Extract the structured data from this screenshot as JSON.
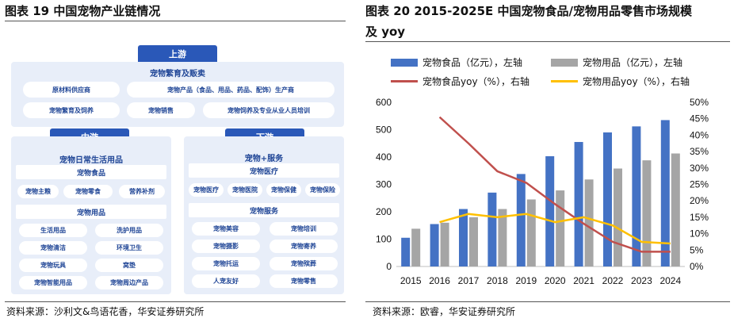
{
  "left": {
    "title": "图表 19 中国宠物产业链情况",
    "source": "资料来源：沙利文&鸟语花香，华安证券研究所",
    "upstream": {
      "tab": "上游",
      "header": "宠物繁育及贩卖",
      "boxes": [
        "原材料供应商",
        "宠物产品（食品、用品、药品、配饰）生产商",
        "宠物繁育及饲养",
        "宠物销售",
        "宠物饲养及专业从业人员培训"
      ]
    },
    "midstream": {
      "tab": "中游",
      "header": "宠物日常生活用品",
      "food": {
        "title": "宠物食品",
        "items": [
          "宠物主粮",
          "宠物零食",
          "营养补剂"
        ]
      },
      "supplies": {
        "title": "宠物用品",
        "items": [
          "生活用品",
          "洗护用品",
          "宠物清洁",
          "环境卫生",
          "宠物玩具",
          "窝垫",
          "宠物智能用品",
          "宠物周边产品"
        ]
      }
    },
    "downstream": {
      "tab": "下游",
      "header": "宠物+服务",
      "medical": {
        "title": "宠物医疗",
        "items": [
          "宠物医疗",
          "宠物医院",
          "宠物保健",
          "宠物保险"
        ]
      },
      "services": {
        "title": "宠物服务",
        "items": [
          "宠物美容",
          "宠物培训",
          "宠物摄影",
          "宠物寄养",
          "宠物托运",
          "宠物殡葬",
          "人宠友好",
          "宠物零售"
        ]
      }
    }
  },
  "right": {
    "title_line1": "图表 20 2015-2025E 中国宠物食品/宠物用品零售市场规模",
    "title_line2": "及 yoy",
    "source": "资料来源：欧睿，华安证券研究所"
  },
  "chart_data": {
    "type": "bar",
    "categories": [
      "2015",
      "2016",
      "2017",
      "2018",
      "2019",
      "2020",
      "2021",
      "2022",
      "2023",
      "2024"
    ],
    "series": [
      {
        "name": "宠物食品（亿元），左轴",
        "kind": "bar",
        "axis": "left",
        "color": "#4472c4",
        "values": [
          105,
          155,
          210,
          270,
          338,
          403,
          455,
          490,
          512,
          535
        ]
      },
      {
        "name": "宠物用品（亿元），左轴",
        "kind": "bar",
        "axis": "left",
        "color": "#a5a5a5",
        "values": [
          138,
          160,
          180,
          210,
          245,
          278,
          318,
          358,
          388,
          413
        ]
      },
      {
        "name": "宠物食品yoy（%），右轴",
        "kind": "line",
        "axis": "right",
        "color": "#c0504d",
        "values": [
          null,
          45.5,
          37.5,
          29.0,
          25.5,
          19.0,
          13.0,
          7.5,
          4.5,
          4.5
        ]
      },
      {
        "name": "宠物用品yoy（%），右轴",
        "kind": "line",
        "axis": "right",
        "color": "#ffc000",
        "values": [
          null,
          13.5,
          16.0,
          15.0,
          16.0,
          13.5,
          15.0,
          12.5,
          7.5,
          7.0
        ]
      }
    ],
    "y_left": {
      "min": 0,
      "max": 600,
      "ticks": [
        "0",
        "100",
        "200",
        "300",
        "400",
        "500",
        "600"
      ]
    },
    "y_right": {
      "min": 0,
      "max": 50,
      "ticks": [
        "0%",
        "5%",
        "10%",
        "15%",
        "20%",
        "25%",
        "30%",
        "35%",
        "40%",
        "45%",
        "50%"
      ]
    },
    "legend_position": "top",
    "grid": false
  }
}
